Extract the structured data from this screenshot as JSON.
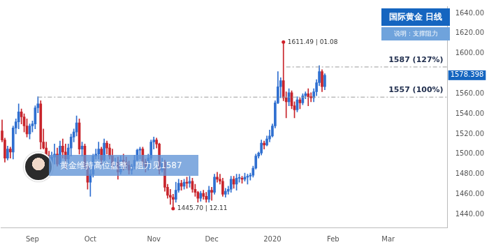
{
  "chart_data": {
    "type": "candlestick",
    "title": "国际黄金 日线",
    "subtitle": "说明：支撑阻力",
    "annotation": "黄金维持高位盘整，阻力见1587",
    "categories": [
      null,
      null,
      null,
      null,
      null,
      null,
      null,
      null,
      null,
      null,
      null,
      "Sep",
      null,
      null,
      null,
      null,
      null,
      null,
      null,
      null,
      null,
      null,
      null,
      null,
      null,
      null,
      null,
      null,
      null,
      null,
      null,
      null,
      "Oct",
      null,
      null,
      null,
      null,
      null,
      null,
      null,
      null,
      null,
      null,
      null,
      null,
      null,
      null,
      null,
      null,
      null,
      null,
      null,
      null,
      null,
      null,
      "Nov",
      null,
      null,
      null,
      null,
      null,
      null,
      null,
      null,
      null,
      null,
      null,
      null,
      null,
      null,
      null,
      null,
      null,
      null,
      null,
      null,
      "Dec",
      null,
      null,
      null,
      null,
      null,
      null,
      null,
      null,
      null,
      null,
      null,
      null,
      null,
      null,
      null,
      null,
      null,
      null,
      null,
      null,
      null,
      "2020",
      null,
      null,
      null,
      null,
      null,
      null,
      null,
      null,
      null,
      null,
      null,
      null,
      null,
      null,
      null,
      null,
      null,
      null,
      null,
      null,
      null,
      "Feb",
      null,
      null,
      null,
      null,
      null,
      null,
      null,
      null,
      null,
      null,
      null,
      null,
      null,
      null,
      null,
      null,
      null,
      null,
      null,
      "Mar",
      null,
      null,
      null,
      null,
      null,
      null,
      null,
      null,
      null,
      null,
      null,
      null,
      null,
      null,
      null,
      null,
      null,
      null,
      null,
      null,
      null
    ],
    "values": [
      [
        1523,
        1534,
        1512,
        1514
      ],
      [
        1514,
        1516,
        1492,
        1496
      ],
      [
        1496,
        1508,
        1494,
        1505
      ],
      [
        1505,
        1507,
        1496,
        1502
      ],
      [
        1502,
        1528,
        1495,
        1526
      ],
      [
        1526,
        1535,
        1520,
        1532
      ],
      [
        1532,
        1550,
        1525,
        1542
      ],
      [
        1542,
        1545,
        1530,
        1537
      ],
      [
        1537,
        1540,
        1522,
        1528
      ],
      [
        1528,
        1535,
        1517,
        1520
      ],
      [
        1520,
        1530,
        1515,
        1528
      ],
      [
        1528,
        1533,
        1522,
        1530
      ],
      [
        1530,
        1548,
        1525,
        1546
      ],
      [
        1546,
        1557,
        1541,
        1550
      ],
      [
        1550,
        1553,
        1505,
        1512
      ],
      [
        1512,
        1525,
        1505,
        1506
      ],
      [
        1506,
        1512,
        1496,
        1499
      ],
      [
        1499,
        1503,
        1485,
        1488
      ],
      [
        1488,
        1502,
        1484,
        1497
      ],
      [
        1497,
        1510,
        1490,
        1500
      ],
      [
        1500,
        1506,
        1488,
        1490
      ],
      [
        1490,
        1513,
        1489,
        1508
      ],
      [
        1508,
        1515,
        1496,
        1502
      ],
      [
        1502,
        1510,
        1485,
        1495
      ],
      [
        1495,
        1510,
        1490,
        1506
      ],
      [
        1506,
        1520,
        1498,
        1517
      ],
      [
        1517,
        1525,
        1512,
        1522
      ],
      [
        1522,
        1538,
        1518,
        1531
      ],
      [
        1531,
        1535,
        1500,
        1505
      ],
      [
        1505,
        1512,
        1498,
        1508
      ],
      [
        1508,
        1510,
        1485,
        1488
      ],
      [
        1488,
        1490,
        1465,
        1472
      ],
      [
        1472,
        1486,
        1458,
        1480
      ],
      [
        1480,
        1500,
        1477,
        1498
      ],
      [
        1498,
        1505,
        1495,
        1500
      ],
      [
        1500,
        1512,
        1495,
        1505
      ],
      [
        1505,
        1507,
        1490,
        1494
      ],
      [
        1494,
        1515,
        1490,
        1511
      ],
      [
        1511,
        1513,
        1500,
        1506
      ],
      [
        1506,
        1510,
        1495,
        1498
      ],
      [
        1498,
        1505,
        1485,
        1488
      ],
      [
        1488,
        1496,
        1486,
        1492
      ],
      [
        1492,
        1497,
        1475,
        1482
      ],
      [
        1482,
        1498,
        1480,
        1494
      ],
      [
        1494,
        1500,
        1484,
        1492
      ],
      [
        1492,
        1497,
        1485,
        1489
      ],
      [
        1489,
        1493,
        1480,
        1484
      ],
      [
        1484,
        1490,
        1480,
        1488
      ],
      [
        1488,
        1499,
        1485,
        1494
      ],
      [
        1494,
        1505,
        1492,
        1504
      ],
      [
        1504,
        1507,
        1495,
        1505
      ],
      [
        1505,
        1507,
        1488,
        1492
      ],
      [
        1492,
        1495,
        1482,
        1488
      ],
      [
        1488,
        1500,
        1484,
        1496
      ],
      [
        1496,
        1514,
        1494,
        1512
      ],
      [
        1512,
        1517,
        1505,
        1514
      ],
      [
        1514,
        1516,
        1506,
        1510
      ],
      [
        1510,
        1511,
        1480,
        1484
      ],
      [
        1484,
        1496,
        1482,
        1492
      ],
      [
        1492,
        1494,
        1463,
        1467
      ],
      [
        1467,
        1470,
        1456,
        1459
      ],
      [
        1459,
        1465,
        1450,
        1457
      ],
      [
        1457,
        1460,
        1445.7,
        1455
      ],
      [
        1455,
        1472,
        1452,
        1464
      ],
      [
        1464,
        1475,
        1462,
        1471
      ],
      [
        1471,
        1474,
        1464,
        1468
      ],
      [
        1468,
        1475,
        1465,
        1472
      ],
      [
        1472,
        1477,
        1466,
        1471
      ],
      [
        1471,
        1478,
        1467,
        1473
      ],
      [
        1473,
        1476,
        1462,
        1465
      ],
      [
        1465,
        1470,
        1458,
        1462
      ],
      [
        1462,
        1463,
        1452,
        1456
      ],
      [
        1456,
        1463,
        1453,
        1461
      ],
      [
        1461,
        1464,
        1455,
        1458
      ],
      [
        1458,
        1462,
        1452,
        1455
      ],
      [
        1455,
        1468,
        1452,
        1464
      ],
      [
        1464,
        1467,
        1454,
        1462
      ],
      [
        1462,
        1480,
        1460,
        1477
      ],
      [
        1477,
        1482,
        1472,
        1475
      ],
      [
        1475,
        1480,
        1470,
        1473
      ],
      [
        1473,
        1476,
        1458,
        1460
      ],
      [
        1460,
        1466,
        1457,
        1463
      ],
      [
        1463,
        1468,
        1460,
        1465
      ],
      [
        1465,
        1478,
        1462,
        1475
      ],
      [
        1475,
        1478,
        1466,
        1470
      ],
      [
        1470,
        1480,
        1464,
        1476
      ],
      [
        1476,
        1480,
        1472,
        1476
      ],
      [
        1476,
        1478,
        1471,
        1475
      ],
      [
        1475,
        1481,
        1473,
        1477
      ],
      [
        1477,
        1480,
        1470,
        1478
      ],
      [
        1478,
        1481,
        1474,
        1479
      ],
      [
        1479,
        1488,
        1477,
        1486
      ],
      [
        1486,
        1500,
        1485,
        1498
      ],
      [
        1498,
        1502,
        1496,
        1501
      ],
      [
        1501,
        1514,
        1499,
        1511
      ],
      [
        1511,
        1513,
        1505,
        1509
      ],
      [
        1509,
        1518,
        1508,
        1515
      ],
      [
        1515,
        1524,
        1512,
        1518
      ],
      [
        1518,
        1530,
        1517,
        1528
      ],
      [
        1528,
        1553,
        1526,
        1551
      ],
      [
        1551,
        1582,
        1550,
        1567
      ],
      [
        1567,
        1576,
        1556,
        1573
      ],
      [
        1573,
        1611.49,
        1553,
        1556
      ],
      [
        1556,
        1562,
        1536,
        1552
      ],
      [
        1552,
        1565,
        1548,
        1561
      ],
      [
        1561,
        1563,
        1545,
        1548
      ],
      [
        1548,
        1552,
        1536,
        1544
      ],
      [
        1544,
        1557,
        1542,
        1554
      ],
      [
        1554,
        1556,
        1545,
        1551
      ],
      [
        1551,
        1560,
        1549,
        1558
      ],
      [
        1558,
        1562,
        1555,
        1560
      ],
      [
        1560,
        1565,
        1548,
        1557
      ],
      [
        1557,
        1561,
        1552,
        1556
      ],
      [
        1556,
        1565,
        1552,
        1562
      ],
      [
        1562,
        1574,
        1558,
        1571
      ],
      [
        1571,
        1588,
        1568,
        1582
      ],
      [
        1582,
        1584,
        1562,
        1567
      ],
      [
        1567,
        1580,
        1564,
        1578.398
      ],
      null,
      null,
      null,
      null,
      null,
      null,
      null,
      null,
      null,
      null,
      null,
      null,
      null,
      null,
      null,
      null,
      null,
      null,
      null,
      null,
      null,
      null,
      null,
      null,
      null,
      null,
      null,
      null,
      null,
      null,
      null,
      null,
      null,
      null,
      null,
      null,
      null,
      null,
      null,
      null,
      null,
      null,
      null,
      null
    ],
    "colors": [
      "#2f6fd0",
      "#c8242b"
    ],
    "levels": [
      {
        "value": 1587,
        "label": "1587 (127%)",
        "start": 103
      },
      {
        "value": 1557,
        "label": "1557 (100%)",
        "start": 13
      }
    ],
    "markers": [
      {
        "index": 102,
        "value": 1611.49,
        "label": "1611.49 | 01.08"
      },
      {
        "index": 62,
        "value": 1445.7,
        "label": "1445.70 | 12.11"
      }
    ],
    "ylim": [
      1427,
      1647
    ],
    "yticks": [
      {
        "value": 1440,
        "label": "1440.00"
      },
      {
        "value": 1460,
        "label": "1460.00"
      },
      {
        "value": 1480,
        "label": "1480.00"
      },
      {
        "value": 1500,
        "label": "1500.00"
      },
      {
        "value": 1520,
        "label": "1520.00"
      },
      {
        "value": 1540,
        "label": "1540.00"
      },
      {
        "value": 1560,
        "label": "1560.00"
      },
      {
        "value": 1600,
        "label": "1600.00"
      },
      {
        "value": 1620,
        "label": "1620.00"
      },
      {
        "value": 1640,
        "label": "1640.00"
      }
    ],
    "grid": false
  }
}
